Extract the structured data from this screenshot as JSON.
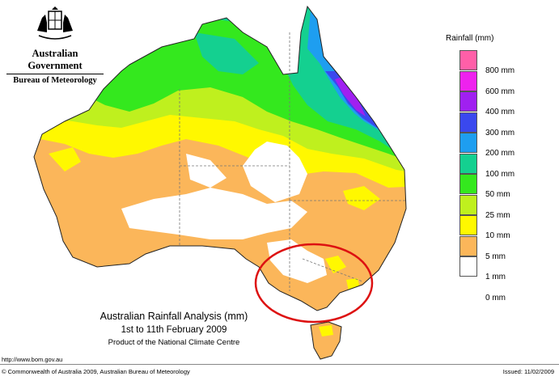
{
  "header": {
    "organisation": "Australian Government",
    "agency": "Bureau of Meteorology"
  },
  "map": {
    "title": "Australian Rainfall Analysis (mm)",
    "period": "1st to 11th February 2009",
    "product": "Product of the National Climate Centre",
    "highlight_color": "#dd1111"
  },
  "legend": {
    "title": "Rainfall (mm)",
    "items": [
      {
        "label": "800 mm",
        "color": "#ff5fa8"
      },
      {
        "label": "600 mm",
        "color": "#ee22ee"
      },
      {
        "label": "400 mm",
        "color": "#a020f0"
      },
      {
        "label": "300 mm",
        "color": "#3a48ee"
      },
      {
        "label": "200 mm",
        "color": "#1e9ef0"
      },
      {
        "label": "100 mm",
        "color": "#14d090"
      },
      {
        "label": "50 mm",
        "color": "#34e81e"
      },
      {
        "label": "25 mm",
        "color": "#bff01e"
      },
      {
        "label": "10 mm",
        "color": "#fff800"
      },
      {
        "label": "5 mm",
        "color": "#fbb65a"
      },
      {
        "label": "1 mm",
        "color": "#ffffff"
      },
      {
        "label": "0 mm",
        "color": "#ffffff"
      }
    ]
  },
  "footer": {
    "url": "http://www.bom.gov.au",
    "copyright": "© Commonwealth of Australia 2009, Australian Bureau of Meteorology",
    "issued": "Issued: 11/02/2009"
  }
}
